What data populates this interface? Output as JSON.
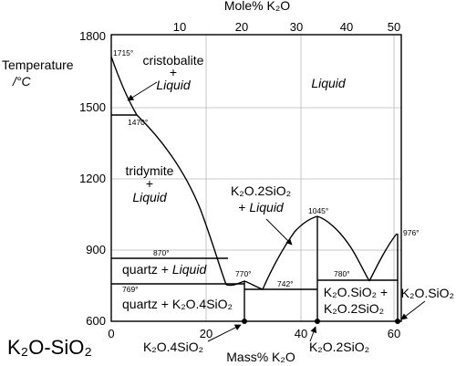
{
  "system_label": "K₂O-SiO₂",
  "axes": {
    "y_title_line1": "Temperature",
    "y_title_line2": "/°C",
    "x_bottom_title": "Mass% K₂O",
    "x_top_title": "Mole% K₂O",
    "y_ticks": [
      "1800",
      "1500",
      "1200",
      "900",
      "600"
    ],
    "x_bottom_ticks": [
      "0",
      "20",
      "40",
      "60"
    ],
    "x_top_ticks": [
      "10",
      "20",
      "30",
      "40",
      "50"
    ]
  },
  "fields": {
    "cristobalite": "cristobalite",
    "cristobalite_plus": "+",
    "cristobalite_liquid": "Liquid",
    "liquid": "Liquid",
    "tridymite": "tridymite",
    "tridymite_plus": "+",
    "tridymite_liquid": "Liquid",
    "quartz_liquid_a": "quartz + ",
    "quartz_liquid_b": "Liquid",
    "quartz_k2o4sio2": "quartz + K₂O.4SiO₂",
    "k2o2sio2_a": "K₂O.2SiO₂",
    "k2o2sio2_b": "+ ",
    "k2o2sio2_c": "Liquid",
    "k2osio2_k2o2sio2_a": "K₂O.SiO₂ +",
    "k2osio2_k2o2sio2_b": "K₂O.2SiO₂"
  },
  "temperatures": {
    "t1715": "1715°",
    "t1470": "1470°",
    "t870": "870°",
    "t769": "769°",
    "t770": "770°",
    "t742": "742°",
    "t1045": "1045°",
    "t780": "780°",
    "t976": "976°"
  },
  "compounds": {
    "k2o4sio2": "K₂O.4SiO₂",
    "k2o2sio2": "K₂O.2SiO₂",
    "k2osio2": "K₂O.SiO₂"
  }
}
